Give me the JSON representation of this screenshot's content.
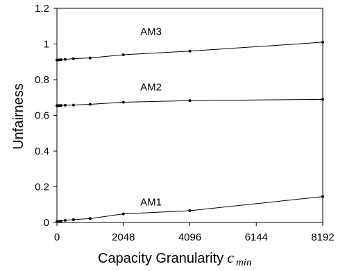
{
  "chart_data": {
    "type": "line",
    "title": "",
    "xlabel": "Capacity Granularity",
    "xlabel_symbol": "c",
    "xlabel_subscript": "min",
    "ylabel": "Unfairness",
    "xlim": [
      0,
      8192
    ],
    "ylim": [
      0,
      1.2
    ],
    "xticks": [
      0,
      2048,
      4096,
      6144,
      8192
    ],
    "xtick_labels": [
      "0",
      "2048",
      "4096",
      "6144",
      "8192"
    ],
    "yticks": [
      0,
      0.2,
      0.4,
      0.6,
      0.8,
      1,
      1.2
    ],
    "ytick_labels": [
      "0",
      "0.2",
      "0.4",
      "0.6",
      "0.8",
      "1",
      "1.2"
    ],
    "grid": false,
    "legend": "none",
    "series": [
      {
        "name": "AM3",
        "color": "#000000",
        "points": [
          [
            1,
            0.91
          ],
          [
            64,
            0.911
          ],
          [
            128,
            0.912
          ],
          [
            256,
            0.914
          ],
          [
            512,
            0.918
          ],
          [
            1024,
            0.922
          ],
          [
            2048,
            0.94
          ],
          [
            4096,
            0.96
          ],
          [
            8192,
            1.01
          ]
        ]
      },
      {
        "name": "AM2",
        "color": "#000000",
        "points": [
          [
            1,
            0.655
          ],
          [
            64,
            0.655
          ],
          [
            128,
            0.656
          ],
          [
            256,
            0.657
          ],
          [
            512,
            0.658
          ],
          [
            1024,
            0.662
          ],
          [
            2048,
            0.674
          ],
          [
            4096,
            0.683
          ],
          [
            8192,
            0.69
          ]
        ]
      },
      {
        "name": "AM1",
        "color": "#000000",
        "points": [
          [
            1,
            0.005
          ],
          [
            64,
            0.006
          ],
          [
            128,
            0.008
          ],
          [
            256,
            0.012
          ],
          [
            512,
            0.016
          ],
          [
            1024,
            0.022
          ],
          [
            2048,
            0.048
          ],
          [
            4096,
            0.066
          ],
          [
            8192,
            0.145
          ]
        ]
      }
    ]
  }
}
